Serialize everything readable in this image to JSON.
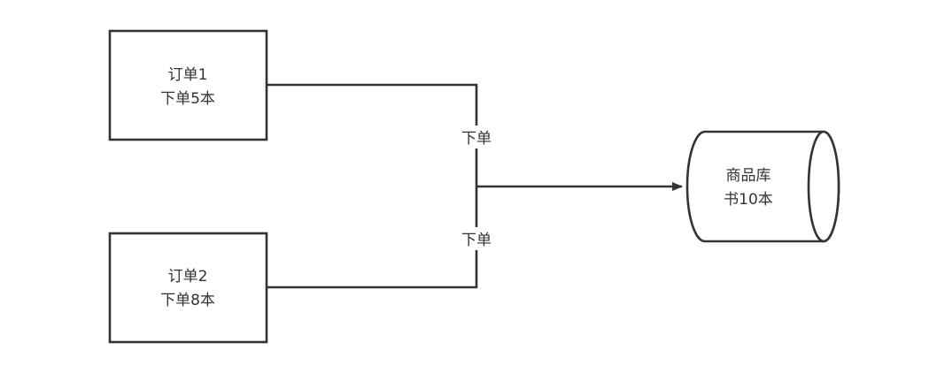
{
  "nodes": {
    "order1": {
      "line1": "订单1",
      "line2": "下单5本"
    },
    "order2": {
      "line1": "订单2",
      "line2": "下单8本"
    },
    "inventory": {
      "line1": "商品库",
      "line2": "书10本"
    }
  },
  "edges": {
    "order1_label": "下单",
    "order2_label": "下单"
  },
  "colors": {
    "stroke": "#333333",
    "background": "#ffffff"
  }
}
